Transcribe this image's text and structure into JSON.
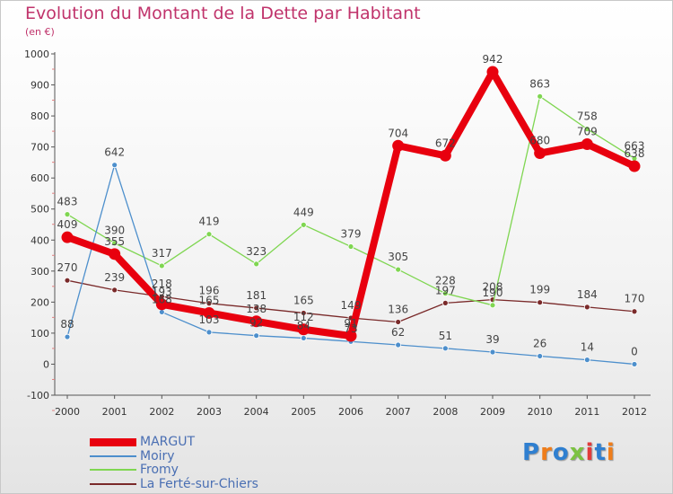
{
  "title": "Evolution du Montant de la Dette par Habitant",
  "subtitle": "(en €)",
  "logo": "Proxiti",
  "chart_data": {
    "type": "line",
    "x": [
      "2000",
      "2001",
      "2002",
      "2003",
      "2004",
      "2005",
      "2006",
      "2007",
      "2008",
      "2009",
      "2010",
      "2011",
      "2012"
    ],
    "ylim": [
      -100,
      1000
    ],
    "yticks": [
      "-100",
      "0",
      "100",
      "200",
      "300",
      "400",
      "500",
      "600",
      "700",
      "800",
      "900",
      "1000"
    ],
    "grid": false,
    "legend_position": "bottom-left",
    "series": [
      {
        "name": "MARGUT",
        "color": "#e8000e",
        "values": [
          409,
          355,
          193,
          165,
          138,
          112,
          91,
          704,
          672,
          942,
          680,
          709,
          638
        ],
        "labels": [
          "409",
          "355",
          "193",
          "165",
          "138",
          "112",
          "91",
          "704",
          "672",
          "942",
          "680",
          "709",
          "638"
        ]
      },
      {
        "name": "Moiry",
        "color": "#4d8fcc",
        "values": [
          88,
          642,
          168,
          103,
          92,
          84,
          73,
          62,
          51,
          39,
          26,
          14,
          0
        ],
        "labels": [
          "88",
          "642",
          "168",
          "103",
          "92",
          "84",
          "73",
          "62",
          "51",
          "39",
          "26",
          "14",
          "0"
        ]
      },
      {
        "name": "Fromy",
        "color": "#7fd651",
        "values": [
          483,
          390,
          317,
          419,
          323,
          449,
          379,
          305,
          228,
          190,
          863,
          758,
          663
        ],
        "labels": [
          "483",
          "390",
          "317",
          "419",
          "323",
          "449",
          "379",
          "305",
          "228",
          "190",
          "863",
          "758",
          "663"
        ]
      },
      {
        "name": "La Ferté-sur-Chiers",
        "color": "#7a2a2a",
        "values": [
          270,
          239,
          218,
          196,
          181,
          165,
          149,
          136,
          197,
          208,
          199,
          184,
          170
        ],
        "labels": [
          "270",
          "239",
          "218",
          "196",
          "181",
          "165",
          "149",
          "136",
          "197",
          "208",
          "199",
          "184",
          "170"
        ]
      }
    ]
  }
}
